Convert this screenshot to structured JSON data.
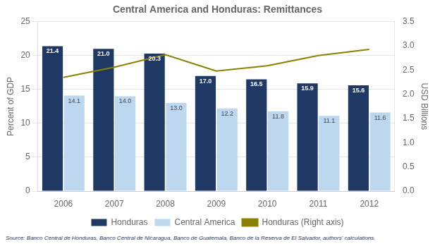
{
  "chart_data": {
    "type": "bar",
    "title": "Central America and Honduras: Remittances",
    "categories": [
      "2006",
      "2007",
      "2008",
      "2009",
      "2010",
      "2011",
      "2012"
    ],
    "series": [
      {
        "name": "Honduras",
        "type": "bar",
        "color": "#1F3864",
        "values": [
          21.4,
          21.0,
          20.3,
          17.0,
          16.5,
          15.9,
          15.6
        ],
        "value_labels": [
          "21.4",
          "21.0",
          "20.3",
          "17.0",
          "16.5",
          "15.9",
          "15.6"
        ],
        "data_labels": true
      },
      {
        "name": "Central America",
        "type": "bar",
        "color": "#BDD7EE",
        "values": [
          14.1,
          14.0,
          13.0,
          12.2,
          11.8,
          11.1,
          11.6
        ],
        "value_labels": [
          "14.1",
          "14.0",
          "13.0",
          "12.2",
          "11.8",
          "11.1",
          "11.6"
        ],
        "data_labels": true
      },
      {
        "name": "Honduras (Right axis)",
        "type": "line",
        "color": "#8B8000",
        "axis": "y2",
        "values": [
          2.35,
          2.56,
          2.82,
          2.48,
          2.59,
          2.8,
          2.93
        ]
      }
    ],
    "ylabel": "Percent of GDP",
    "y2label": "USD Billions",
    "ylim": [
      0,
      25
    ],
    "yticks": [
      0,
      5,
      10,
      15,
      20,
      25
    ],
    "y2lim": [
      0,
      3.5
    ],
    "y2ticks": [
      {
        "value": 0,
        "label": "0.0"
      },
      0.5,
      {
        "value": 1,
        "label": "1.0"
      },
      1.5,
      {
        "value": 2,
        "label": "2.0"
      },
      2.5,
      {
        "value": 3,
        "label": "3.0"
      },
      3.5
    ],
    "grid": true,
    "legend": "bottom",
    "annotations": [
      "Source: Banco Central de Honduras, Banco Central de Nicaragua, Banco de Guatemala, Banco de la Reserva de El Salvador, authors' calculations."
    ]
  }
}
